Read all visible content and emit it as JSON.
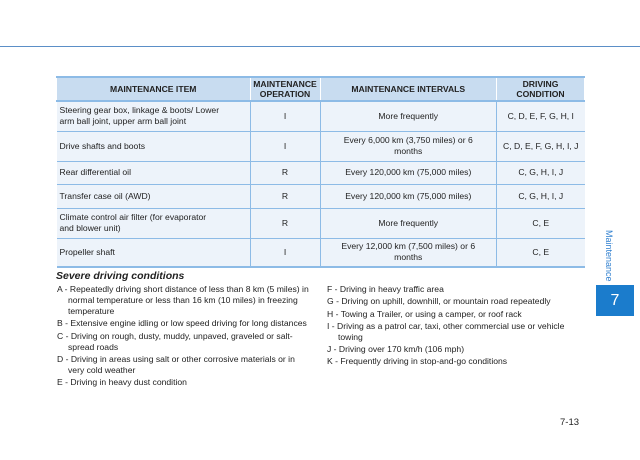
{
  "table": {
    "headers": [
      "MAINTENANCE ITEM",
      "MAINTENANCE OPERATION",
      "MAINTENANCE INTERVALS",
      "DRIVING CONDITION"
    ],
    "rows": [
      [
        "Steering gear box, linkage & boots/ Lower arm ball joint, upper arm ball joint",
        "I",
        "More frequently",
        "C, D, E, F, G, H, I"
      ],
      [
        "Drive shafts and boots",
        "I",
        "Every 6,000 km (3,750 miles) or 6 months",
        "C, D, E, F, G, H, I, J"
      ],
      [
        "Rear differential oil",
        "R",
        "Every 120,000 km (75,000 miles)",
        "C, G, H, I, J"
      ],
      [
        "Transfer case oil (AWD)",
        "R",
        "Every 120,000 km (75,000 miles)",
        "C, G, H, I, J"
      ],
      [
        "Climate control air filter (for evaporator and blower unit)",
        "R",
        "More frequently",
        "C, E"
      ],
      [
        "Propeller shaft",
        "I",
        "Every 12,000 km (7,500 miles) or 6 months",
        "C, E"
      ]
    ]
  },
  "severe": {
    "title": "Severe driving conditions",
    "left": [
      "A - Repeatedly driving short distance of less than 8 km (5 miles) in normal temperature or less than 16 km (10 miles) in freezing temperature",
      "B - Extensive engine idling or low speed driving for long distances",
      "C - Driving on rough, dusty, muddy, unpaved, graveled or salt-spread roads",
      "D - Driving in areas using salt or other corrosive materials or in very cold weather",
      "E - Driving in heavy dust condition"
    ],
    "right": [
      "F - Driving in heavy traffic area",
      "G - Driving on uphill, downhill, or mountain road repeatedly",
      "H - Towing a Trailer, or using a camper, or roof rack",
      "I - Driving as a patrol car, taxi, other commercial use or vehicle towing",
      "J - Driving over 170 km/h (106 mph)",
      "K - Frequently driving in stop-and-go conditions"
    ]
  },
  "side": {
    "section": "Maintenance",
    "chapter": "7"
  },
  "page_number": "7-13",
  "colors": {
    "accent": "#1b7ccc",
    "header_bg": "#c8dcf0",
    "cell_bg": "#edf3fa"
  }
}
